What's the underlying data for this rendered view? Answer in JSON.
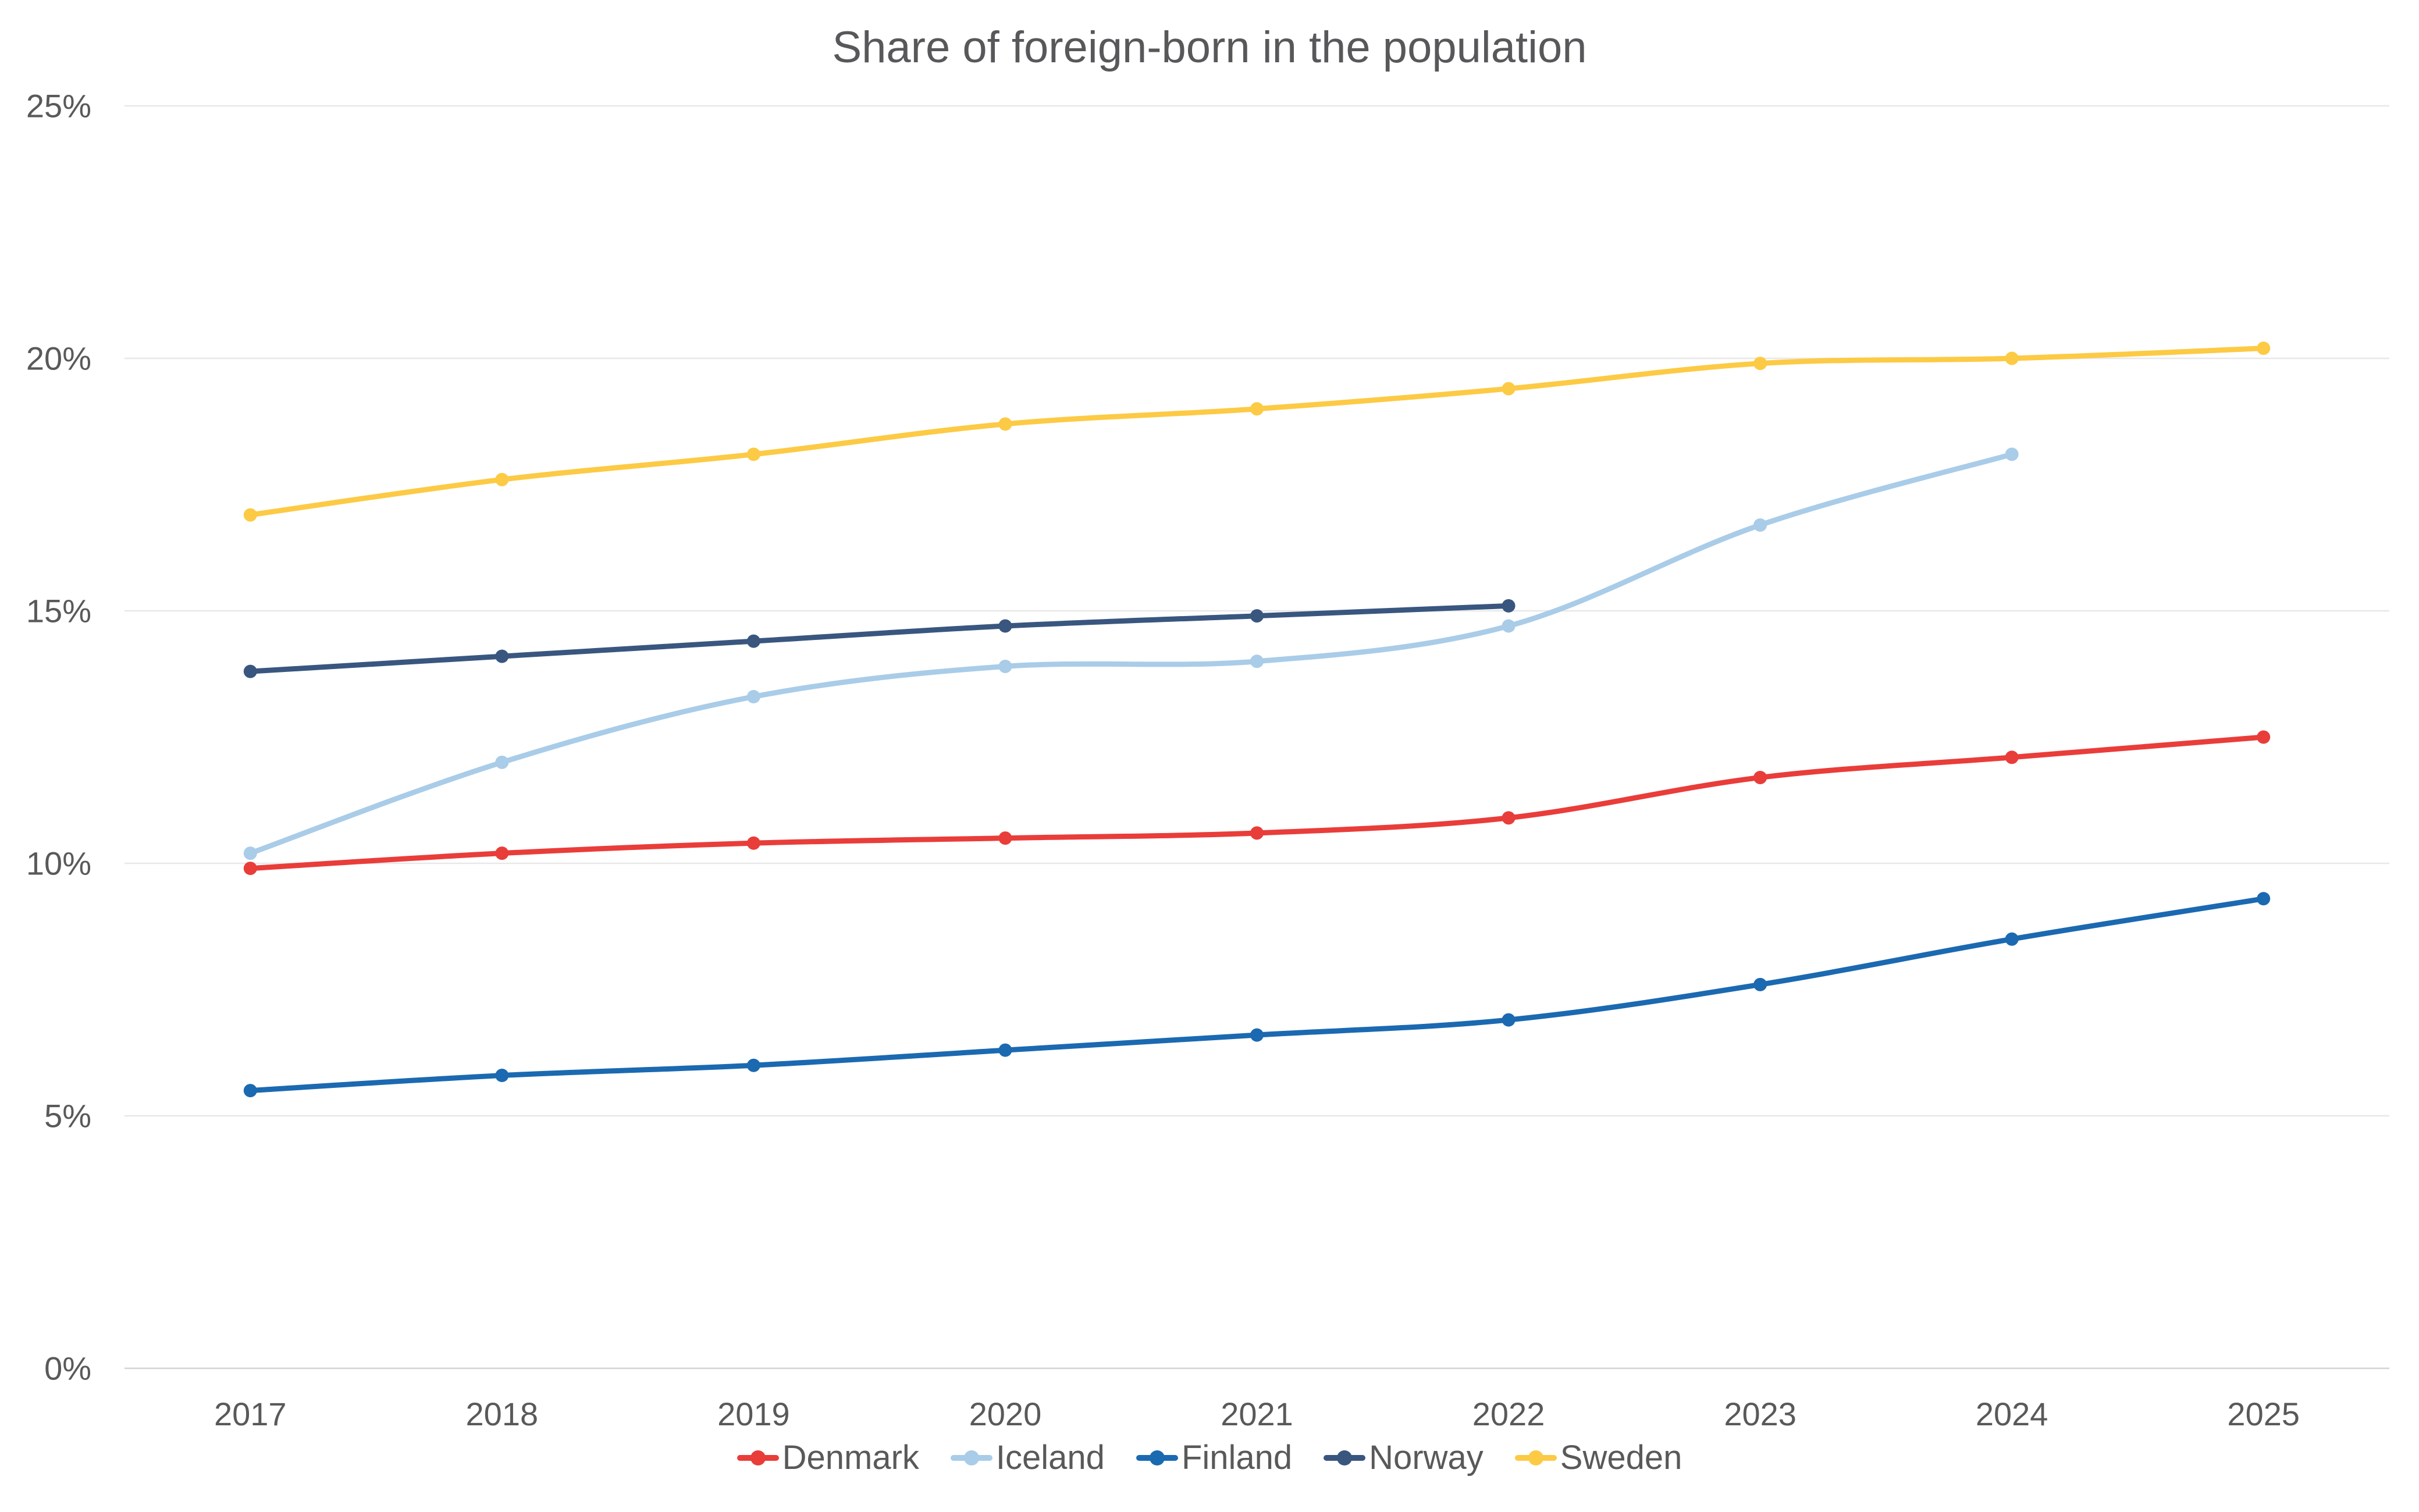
{
  "chart_data": {
    "type": "line",
    "title": "Share of foreign-born in the population",
    "categories": [
      "2017",
      "2018",
      "2019",
      "2020",
      "2021",
      "2022",
      "2023",
      "2024",
      "2025"
    ],
    "series": [
      {
        "name": "Denmark",
        "color": "#e93d3a",
        "values": [
          9.9,
          10.2,
          10.4,
          10.5,
          10.6,
          10.9,
          11.7,
          12.1,
          12.5
        ]
      },
      {
        "name": "Iceland",
        "color": "#a9cce8",
        "values": [
          10.2,
          12.0,
          13.3,
          13.9,
          14.0,
          14.7,
          16.7,
          18.1,
          null
        ]
      },
      {
        "name": "Finland",
        "color": "#1b69b1",
        "values": [
          5.5,
          5.8,
          6.0,
          6.3,
          6.6,
          6.9,
          7.6,
          8.5,
          9.3
        ]
      },
      {
        "name": "Norway",
        "color": "#39567f",
        "values": [
          13.8,
          14.1,
          14.4,
          14.7,
          14.9,
          15.1,
          null,
          null,
          null
        ]
      },
      {
        "name": "Sweden",
        "color": "#fcca44",
        "values": [
          16.9,
          17.6,
          18.1,
          18.7,
          19.0,
          19.4,
          19.9,
          20.0,
          20.2
        ]
      }
    ],
    "ylim": [
      0,
      25
    ],
    "yticks": [
      0,
      5,
      10,
      15,
      20,
      25
    ],
    "ytick_labels": [
      "0%",
      "5%",
      "10%",
      "15%",
      "20%",
      "25%"
    ],
    "xlabel": "",
    "ylabel": "",
    "grid": true,
    "legend_position": "bottom",
    "gridline_color": "#e8e8e8",
    "baseline_color": "#d2d2d2",
    "text_color": "#595959"
  }
}
